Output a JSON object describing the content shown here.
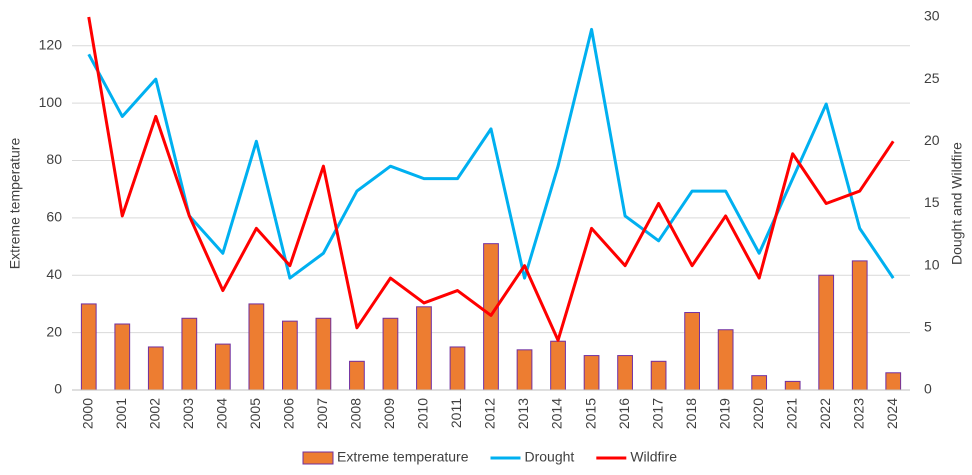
{
  "chart_data": {
    "type": "bar_line",
    "ylabel": "Extreme temperature",
    "y2label": "Dought and Wildfire",
    "categories": [
      "2000",
      "2001",
      "2002",
      "2003",
      "2004",
      "2005",
      "2006",
      "2007",
      "2008",
      "2009",
      "2010",
      "2011",
      "2012",
      "2013",
      "2014",
      "2015",
      "2016",
      "2017",
      "2018",
      "2019",
      "2020",
      "2021",
      "2022",
      "2023",
      "2024"
    ],
    "series": [
      {
        "name": "Extreme temperature",
        "type": "bar",
        "color": "#ed7d31",
        "edge_color": "#7030a0",
        "values": [
          30,
          23,
          15,
          25,
          16,
          30,
          24,
          25,
          10,
          25,
          29,
          15,
          51,
          14,
          17,
          12,
          12,
          10,
          27,
          21,
          5,
          3,
          40,
          45,
          6
        ]
      },
      {
        "name": "Drought",
        "type": "line",
        "axis": "y2",
        "color": "#00b0f0",
        "values": [
          27,
          22,
          25,
          14,
          11,
          20,
          9,
          11,
          16,
          18,
          17,
          17,
          21,
          9,
          18,
          29,
          14,
          12,
          16,
          16,
          11,
          17,
          23,
          13,
          9
        ]
      },
      {
        "name": "Wildfire",
        "type": "line",
        "axis": "y2",
        "color": "#ff0000",
        "values": [
          30,
          14,
          22,
          14,
          8,
          13,
          10,
          18,
          5,
          9,
          7,
          8,
          6,
          10,
          4,
          13,
          10,
          15,
          10,
          14,
          9,
          19,
          15,
          16,
          20
        ]
      }
    ],
    "ylim": [
      0,
      130
    ],
    "yticks": [
      0,
      20,
      40,
      60,
      80,
      100,
      120
    ],
    "y2lim": [
      0,
      30
    ],
    "y2ticks": [
      0,
      5,
      10,
      15,
      20,
      25,
      30
    ],
    "grid": true,
    "legend": "bottom"
  }
}
